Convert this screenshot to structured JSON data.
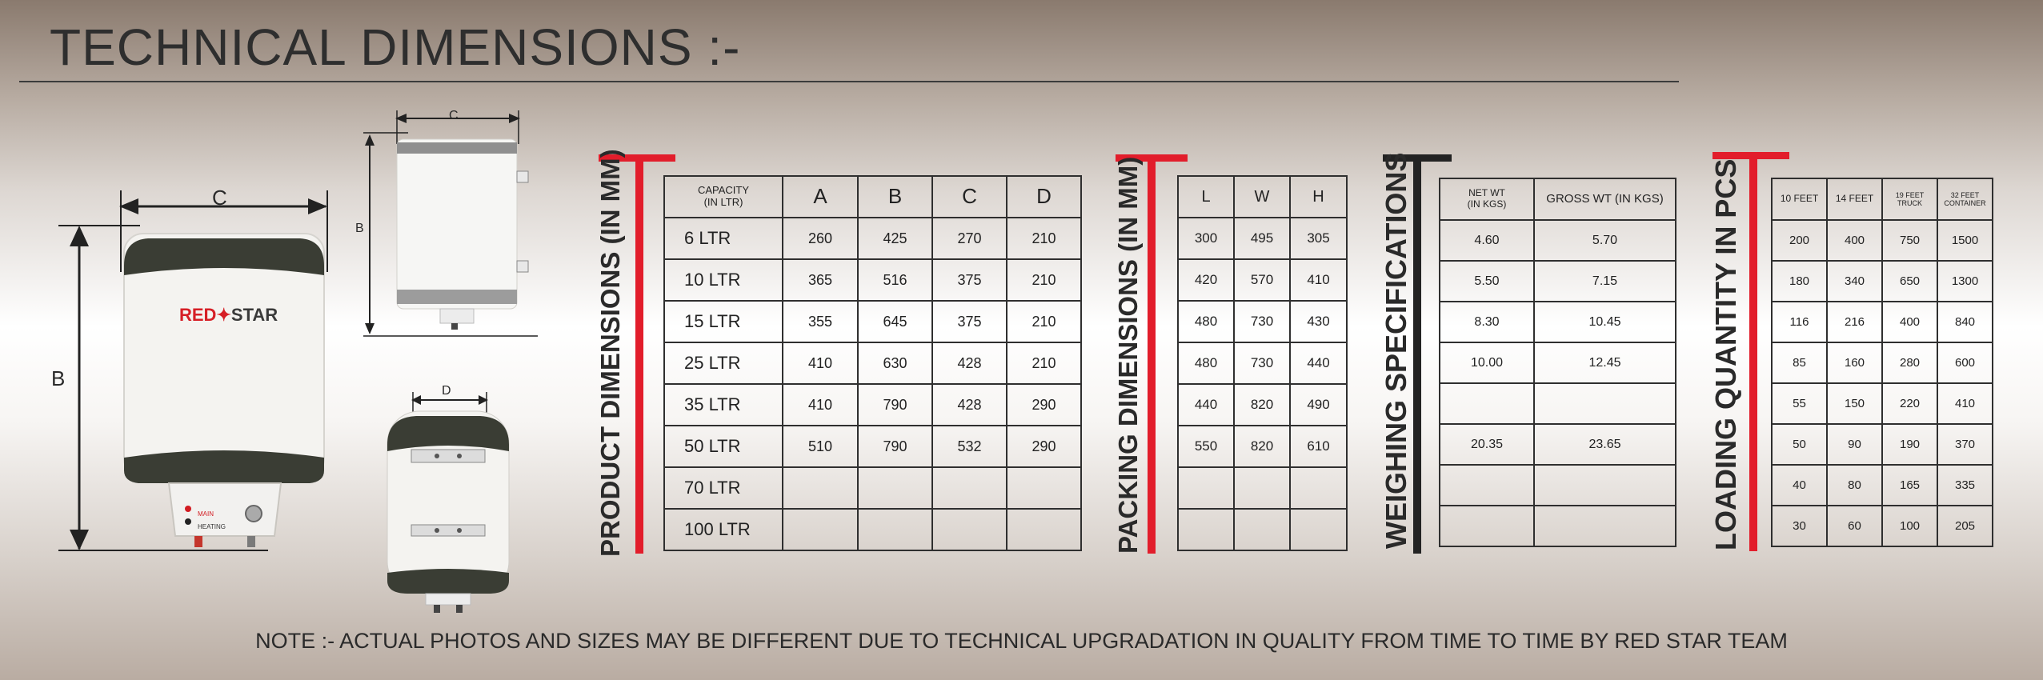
{
  "title": "TECHNICAL DIMENSIONS :-",
  "note": "NOTE :- ACTUAL PHOTOS AND SIZES MAY BE DIFFERENT DUE TO TECHNICAL UPGRADATION IN QUALITY FROM TIME TO TIME BY RED STAR TEAM",
  "illustration": {
    "brand_left": "RED",
    "brand_right": "STAR",
    "label_B": "B",
    "label_C": "C",
    "label_D": "D",
    "panel_main": "MAIN",
    "panel_heating": "HEATING"
  },
  "colors": {
    "accent_red": "#e21d2b",
    "dark": "#2b2b2b",
    "band": "#3a3d34"
  },
  "product": {
    "label": "PRODUCT DIMENSIONS (IN MM)",
    "headers": [
      "CAPACITY\n(IN LTR)",
      "A",
      "B",
      "C",
      "D"
    ],
    "rows": [
      [
        "6 LTR",
        "260",
        "425",
        "270",
        "210"
      ],
      [
        "10 LTR",
        "365",
        "516",
        "375",
        "210"
      ],
      [
        "15 LTR",
        "355",
        "645",
        "375",
        "210"
      ],
      [
        "25 LTR",
        "410",
        "630",
        "428",
        "210"
      ],
      [
        "35 LTR",
        "410",
        "790",
        "428",
        "290"
      ],
      [
        "50 LTR",
        "510",
        "790",
        "532",
        "290"
      ],
      [
        "70 LTR",
        "",
        "",
        "",
        ""
      ],
      [
        "100 LTR",
        "",
        "",
        "",
        ""
      ]
    ]
  },
  "packing": {
    "label": "PACKING DIMENSIONS (IN MM)",
    "headers": [
      "L",
      "W",
      "H"
    ],
    "rows": [
      [
        "300",
        "495",
        "305"
      ],
      [
        "420",
        "570",
        "410"
      ],
      [
        "480",
        "730",
        "430"
      ],
      [
        "480",
        "730",
        "440"
      ],
      [
        "440",
        "820",
        "490"
      ],
      [
        "550",
        "820",
        "610"
      ],
      [
        "",
        "",
        ""
      ],
      [
        "",
        "",
        ""
      ]
    ]
  },
  "weighing": {
    "label": "WEIGHING SPECIFICATIONS",
    "headers": [
      "NET WT\n(IN KGS)",
      "GROSS WT (IN KGS)"
    ],
    "rows": [
      [
        "4.60",
        "5.70"
      ],
      [
        "5.50",
        "7.15"
      ],
      [
        "8.30",
        "10.45"
      ],
      [
        "10.00",
        "12.45"
      ],
      [
        "",
        ""
      ],
      [
        "20.35",
        "23.65"
      ],
      [
        "",
        ""
      ],
      [
        "",
        ""
      ]
    ]
  },
  "loading": {
    "label": "LOADING QUANTITY IN PCS",
    "headers": [
      "10 FEET",
      "14 FEET",
      "19 FEET\nTRUCK",
      "32 FEET\nCONTAINER"
    ],
    "rows": [
      [
        "200",
        "400",
        "750",
        "1500"
      ],
      [
        "180",
        "340",
        "650",
        "1300"
      ],
      [
        "116",
        "216",
        "400",
        "840"
      ],
      [
        "85",
        "160",
        "280",
        "600"
      ],
      [
        "55",
        "150",
        "220",
        "410"
      ],
      [
        "50",
        "90",
        "190",
        "370"
      ],
      [
        "40",
        "80",
        "165",
        "335"
      ],
      [
        "30",
        "60",
        "100",
        "205"
      ]
    ]
  }
}
